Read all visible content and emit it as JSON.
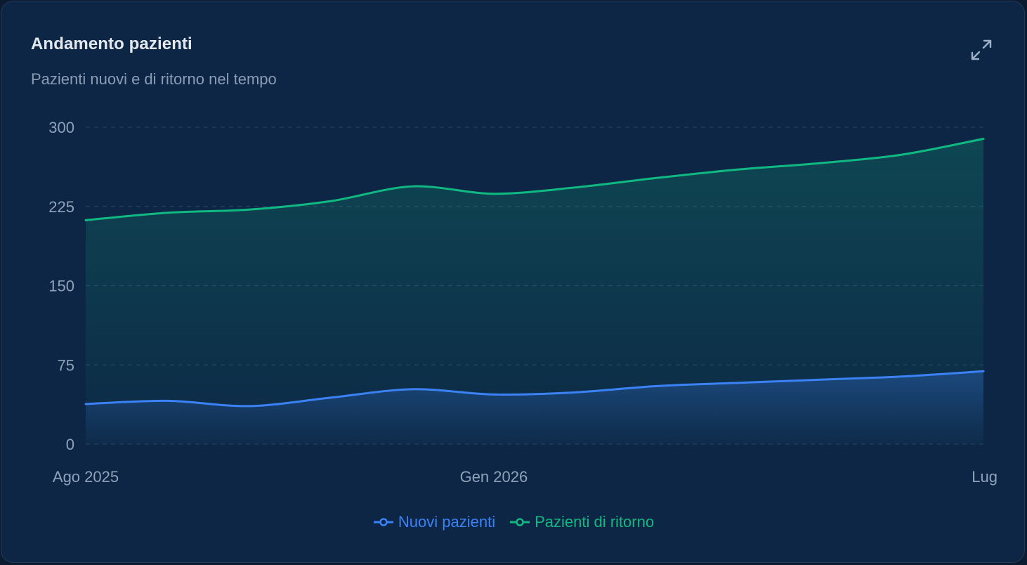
{
  "card": {
    "title": "Andamento pazienti",
    "subtitle": "Pazienti nuovi e di ritorno nel tempo",
    "expand_icon": "expand-icon"
  },
  "colors": {
    "background": "#0d2645",
    "grid": "#24405f",
    "new_patients": "#3b82f6",
    "returning_patients": "#10b981"
  },
  "chart_data": {
    "type": "area",
    "title": "Andamento pazienti",
    "subtitle": "Pazienti nuovi e di ritorno nel tempo",
    "x": [
      "2025-08",
      "2025-09",
      "2025-10",
      "2025-11",
      "2025-12",
      "2026-01",
      "2026-02",
      "2026-03",
      "2026-04",
      "2026-05",
      "2026-06",
      "2026-07"
    ],
    "x_tick_labels": [
      {
        "at": "2025-08",
        "label": "Ago 2025"
      },
      {
        "at": "2026-01",
        "label": "Gen 2026"
      },
      {
        "at": "2026-07",
        "label": "Lug"
      }
    ],
    "ylim": [
      0,
      300
    ],
    "y_ticks": [
      0,
      75,
      150,
      225,
      300
    ],
    "grid": true,
    "legend_position": "bottom-center",
    "series": [
      {
        "name": "Nuovi pazienti",
        "color": "#3b82f6",
        "values": [
          38,
          41,
          36,
          44,
          52,
          47,
          49,
          55,
          58,
          61,
          64,
          69
        ]
      },
      {
        "name": "Pazienti di ritorno",
        "color": "#10b981",
        "values": [
          212,
          219,
          222,
          230,
          244,
          237,
          243,
          252,
          260,
          266,
          274,
          289
        ]
      }
    ]
  }
}
